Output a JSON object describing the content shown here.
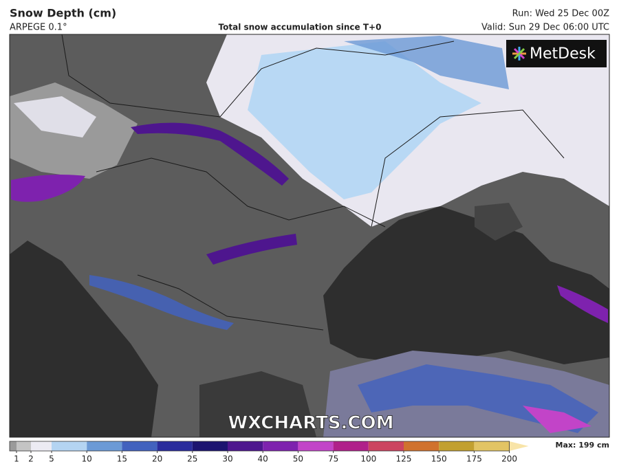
{
  "header": {
    "title": "Snow Depth (cm)",
    "model": "ARPEGE 0.1°",
    "subtitle": "Total snow accumulation since T+0",
    "run": "Run: Wed 25 Dec 00Z",
    "valid": "Valid: Sun 29 Dec 06:00 UTC"
  },
  "logo": "MetDesk",
  "watermark": "WXCHARTS.COM",
  "legend": {
    "max": "Max: 199 cm",
    "ticks": [
      1,
      2,
      5,
      10,
      15,
      20,
      25,
      30,
      40,
      50,
      75,
      100,
      125,
      150,
      175,
      200
    ],
    "colors": [
      "#9a9a9a",
      "#c4c4c4",
      "#ecebf3",
      "#b4d4f2",
      "#6c9ad6",
      "#4262be",
      "#2a2c9c",
      "#1c1470",
      "#4e168e",
      "#7e22ae",
      "#c244c8",
      "#b0208a",
      "#cc4460",
      "#d0722e",
      "#c2a030",
      "#e2c464",
      "#f8e4a8"
    ]
  }
}
